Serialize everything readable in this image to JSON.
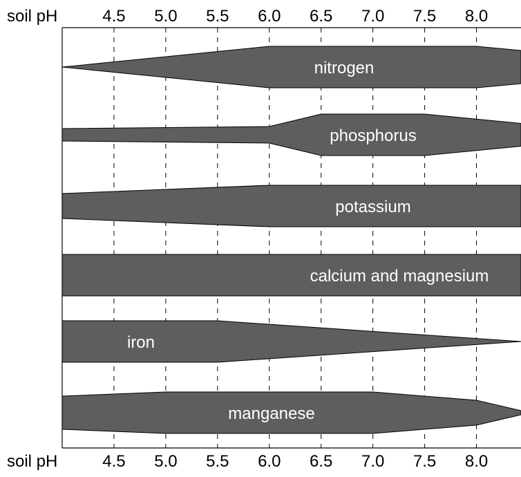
{
  "chart_data": {
    "type": "area",
    "axis_label": "soil pH",
    "x_ticks": [
      "4.5",
      "5.0",
      "5.5",
      "6.0",
      "6.5",
      "7.0",
      "7.5",
      "8.0"
    ],
    "x_tick_values": [
      4.5,
      5.0,
      5.5,
      6.0,
      6.5,
      7.0,
      7.5,
      8.0
    ],
    "xlim": [
      4.0,
      8.43
    ],
    "grid": "dashed vertical lines at each tick",
    "band_color": "#5e5e5e",
    "series": [
      {
        "name": "nitrogen",
        "points": [
          [
            4.0,
            0
          ],
          [
            6.0,
            1
          ],
          [
            8.0,
            1
          ],
          [
            8.43,
            0.8
          ]
        ]
      },
      {
        "name": "phosphorus",
        "points": [
          [
            4.0,
            0.3
          ],
          [
            6.0,
            0.4
          ],
          [
            6.5,
            1
          ],
          [
            7.5,
            1
          ],
          [
            8.43,
            0.55
          ]
        ]
      },
      {
        "name": "potassium",
        "points": [
          [
            4.0,
            0.6
          ],
          [
            6.0,
            1
          ],
          [
            8.43,
            1
          ]
        ]
      },
      {
        "name": "calcium and magnesium",
        "points": [
          [
            4.0,
            1
          ],
          [
            7.0,
            1
          ],
          [
            8.43,
            1
          ]
        ]
      },
      {
        "name": "iron",
        "points": [
          [
            4.0,
            1
          ],
          [
            5.5,
            1
          ],
          [
            8.43,
            0
          ]
        ]
      },
      {
        "name": "manganese",
        "points": [
          [
            4.0,
            0.8
          ],
          [
            5.0,
            1
          ],
          [
            7.0,
            1
          ],
          [
            8.0,
            0.6
          ],
          [
            8.43,
            0.1
          ]
        ]
      }
    ]
  }
}
